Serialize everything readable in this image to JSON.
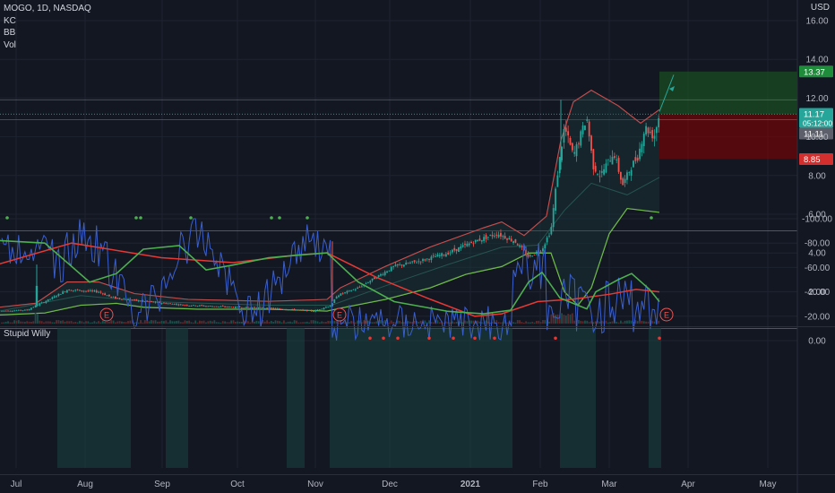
{
  "legend": {
    "symbol": "MOGO, 1D, NASDAQ",
    "indicators": [
      "KC",
      "BB",
      "Vol"
    ]
  },
  "osc_legend": "Stupid Willy",
  "currency": "USD",
  "colors": {
    "background": "#131722",
    "grid": "#1e2330",
    "up": "#26a69a",
    "down": "#ef5350",
    "kc_upper": "#e05050",
    "bb_lower": "#7fd04a",
    "wr_line": "#2962ff",
    "red_ma": "#e53935",
    "green_ma": "#4caf50",
    "target_fill": "#1b5e20",
    "stop_fill": "#7f0000",
    "tag_green": "#1e8c3a",
    "tag_red": "#d32f2f",
    "tag_gray": "#5d606b"
  },
  "chart_data": [
    {
      "type": "candlestick",
      "title": "MOGO, 1D, NASDAQ",
      "x_ticks": [
        "Jul",
        "Aug",
        "Sep",
        "Oct",
        "Nov",
        "Dec",
        "2021",
        "Feb",
        "Mar",
        "Apr",
        "May"
      ],
      "y_ticks": [
        "2.00",
        "4.00",
        "6.00",
        "8.00",
        "10.00",
        "12.00",
        "14.00",
        "16.00"
      ],
      "ylim": [
        0.6,
        16.8
      ],
      "price_tags": [
        {
          "label": "13.37",
          "value": 13.37,
          "kind": "target"
        },
        {
          "label": "11.17",
          "value": 11.17,
          "kind": "last",
          "sub": "05:12:00"
        },
        {
          "label": "11.11",
          "value": 11.11,
          "kind": "ref"
        },
        {
          "label": "8.85",
          "value": 8.85,
          "kind": "stop"
        }
      ],
      "earnings_markers": [
        "E",
        "E",
        "E"
      ],
      "position": {
        "entry": 11.17,
        "target": 13.37,
        "stop": 8.85
      },
      "series_summary": {
        "kc_upper": [
          1.1,
          1.1,
          2.3,
          1.7,
          1.6,
          1.5,
          1.4,
          1.3,
          1.4,
          1.8,
          3.0,
          4.0,
          5.0,
          5.6,
          5.0,
          12.4,
          11.5,
          11.0,
          11.4
        ],
        "bb_lower": [
          0.8,
          0.8,
          1.3,
          1.4,
          1.1,
          1.2,
          1.1,
          1.1,
          1.2,
          1.7,
          2.3,
          2.8,
          3.2,
          3.6,
          3.3,
          1.3,
          5.0,
          6.2,
          6.1
        ]
      }
    },
    {
      "type": "line",
      "title": "Stupid Willy",
      "y_ticks": [
        "0.00",
        "-20.00",
        "-40.00",
        "-60.00",
        "-80.00",
        "-100.00"
      ],
      "ylim": [
        -102,
        2
      ]
    }
  ]
}
